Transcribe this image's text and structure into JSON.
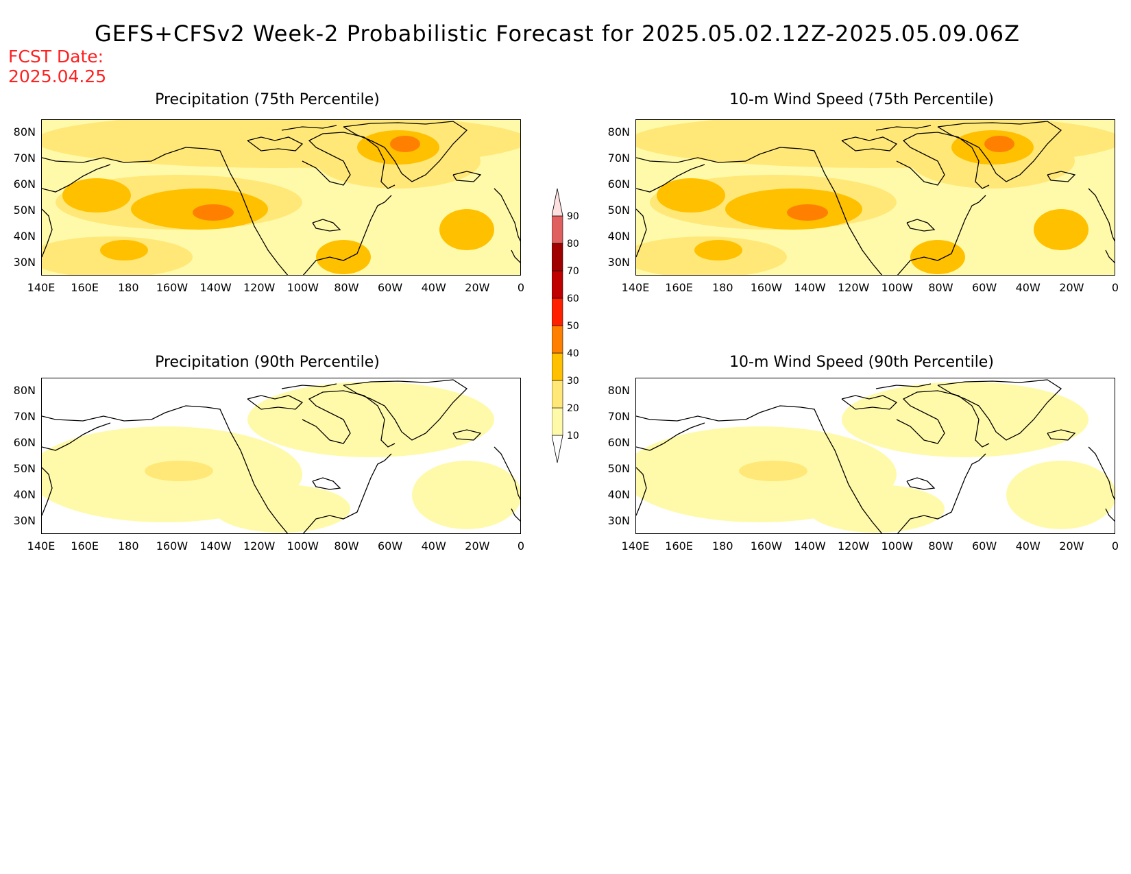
{
  "title": "GEFS+CFSv2 Week-2 Probabilistic Forecast for 2025.05.02.12Z-2025.05.09.06Z",
  "fcst_date": {
    "label": "FCST Date:",
    "value": "2025.04.25"
  },
  "panels": [
    {
      "title": "Precipitation (75th Percentile)",
      "intensity": "high"
    },
    {
      "title": "10-m Wind Speed (75th Percentile)",
      "intensity": "high"
    },
    {
      "title": "Precipitation (90th Percentile)",
      "intensity": "low"
    },
    {
      "title": "10-m Wind Speed (90th Percentile)",
      "intensity": "low"
    }
  ],
  "lat_labels": [
    "80N",
    "70N",
    "60N",
    "50N",
    "40N",
    "30N"
  ],
  "lon_labels": [
    "140E",
    "160E",
    "180",
    "160W",
    "140W",
    "120W",
    "100W",
    "80W",
    "60W",
    "40W",
    "20W",
    "0"
  ],
  "colorbar": {
    "levels": [
      "10",
      "20",
      "30",
      "40",
      "50",
      "60",
      "70",
      "80",
      "90"
    ],
    "colors": [
      "#fffaaa",
      "#ffe878",
      "#ffc000",
      "#ff8000",
      "#ff2000",
      "#c00000",
      "#a00000",
      "#e06060",
      "#f0a0a0",
      "#ffe0e0"
    ]
  }
}
